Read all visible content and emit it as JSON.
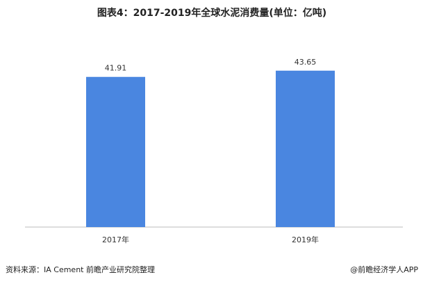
{
  "chart_data": {
    "type": "bar",
    "title": "图表4：2017-2019年全球水泥消费量(单位：亿吨)",
    "categories": [
      "2017年",
      "2019年"
    ],
    "values": [
      41.91,
      43.65
    ],
    "color": "#4a86e0",
    "ylim": [
      0,
      50
    ],
    "source": "资料来源：IA Cement 前瞻产业研究院整理",
    "credit": "@前瞻经济学人APP"
  }
}
